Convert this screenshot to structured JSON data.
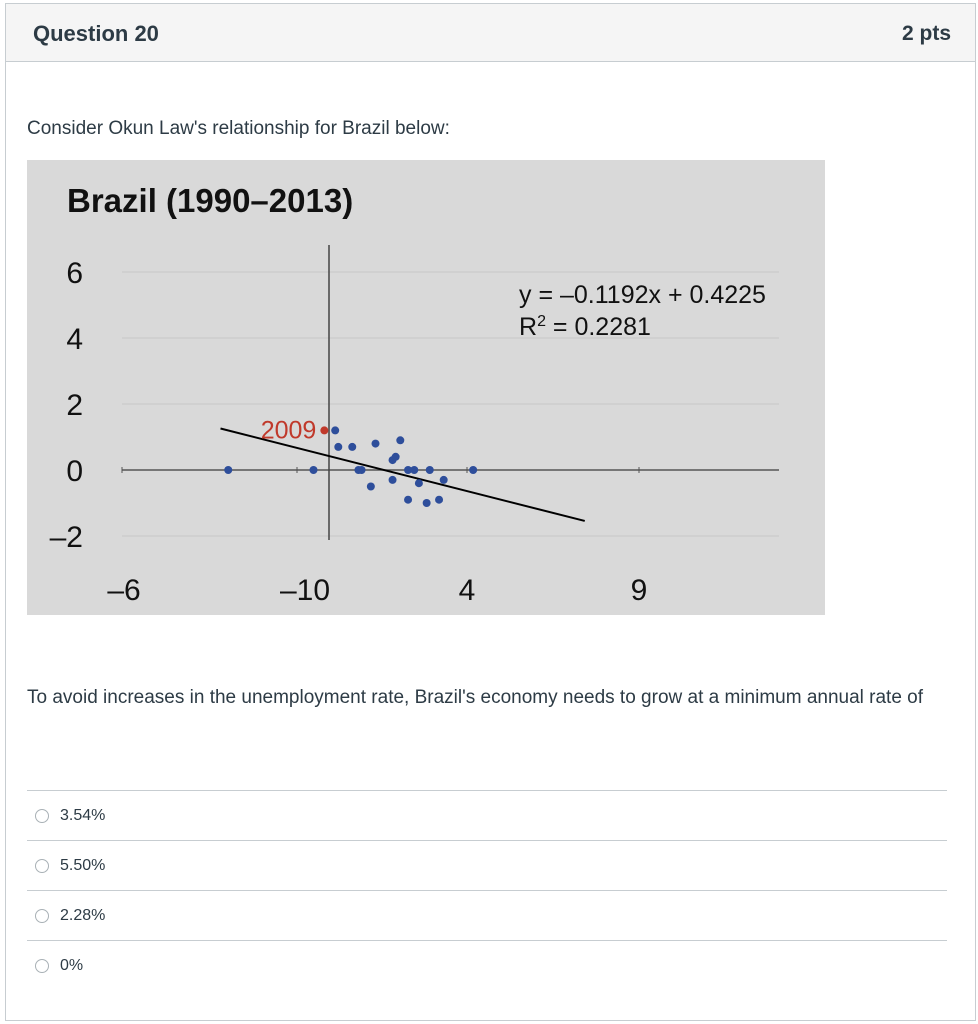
{
  "question": {
    "title": "Question 20",
    "points": "2 pts",
    "prompt": "Consider Okun Law's relationship for Brazil below:",
    "text": "To avoid increases in the unemployment rate, Brazil's economy needs to grow at a minimum annual rate of"
  },
  "answers": [
    {
      "label": "3.54%"
    },
    {
      "label": "5.50%"
    },
    {
      "label": "2.28%"
    },
    {
      "label": "0%"
    }
  ],
  "colors": {
    "chart_background": "#d9d9d9",
    "point": "#2e4e9b",
    "highlight_point": "#c0392b",
    "trendline": "#000000",
    "gridline": "#c8c8c8"
  },
  "chart_data": {
    "type": "scatter",
    "title": "Brazil (1990–2013)",
    "y_ticks": [
      "6",
      "4",
      "2",
      "0",
      "–2"
    ],
    "x_ticks": [
      "–6",
      "–10",
      "4",
      "9"
    ],
    "ylim": [
      -2,
      6
    ],
    "grid": true,
    "equation": "y = –0.1192x + 0.4225",
    "r2_label": "R",
    "r2_sup": "2",
    "r2_value": " = 0.2281",
    "trendline": {
      "slope": -0.1192,
      "intercept": 0.4225
    },
    "highlight": {
      "label": "2009",
      "x": -0.3,
      "y": 1.2
    },
    "points": [
      {
        "x": -6.5,
        "y": 0.0
      },
      {
        "x": -1.0,
        "y": 0.0
      },
      {
        "x": 0.4,
        "y": 1.2
      },
      {
        "x": 0.6,
        "y": 0.7
      },
      {
        "x": 1.5,
        "y": 0.7
      },
      {
        "x": 1.9,
        "y": 0.0
      },
      {
        "x": 2.1,
        "y": 0.0
      },
      {
        "x": 2.7,
        "y": -0.5
      },
      {
        "x": 3.0,
        "y": 0.8
      },
      {
        "x": 4.1,
        "y": 0.3
      },
      {
        "x": 4.3,
        "y": 0.4
      },
      {
        "x": 4.1,
        "y": -0.3
      },
      {
        "x": 4.6,
        "y": 0.9
      },
      {
        "x": 5.1,
        "y": 0.0
      },
      {
        "x": 5.5,
        "y": 0.0
      },
      {
        "x": 5.1,
        "y": -0.9
      },
      {
        "x": 5.8,
        "y": -0.4
      },
      {
        "x": 6.3,
        "y": -1.0
      },
      {
        "x": 6.5,
        "y": 0.0
      },
      {
        "x": 7.1,
        "y": -0.9
      },
      {
        "x": 7.4,
        "y": -0.3
      },
      {
        "x": 9.3,
        "y": 0.0
      }
    ]
  }
}
